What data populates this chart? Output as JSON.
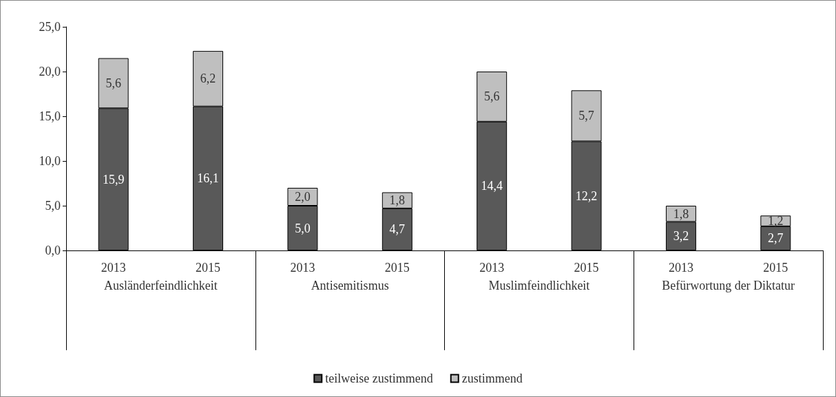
{
  "chart_data": {
    "type": "bar",
    "stacked": true,
    "categories": [
      "2013",
      "2015",
      "2013",
      "2015",
      "2013",
      "2015",
      "2013",
      "2015"
    ],
    "series": [
      {
        "name": "teilweise zustimmend",
        "color": "#595959",
        "values": [
          15.9,
          16.1,
          5.0,
          4.7,
          14.4,
          12.2,
          3.2,
          2.7
        ],
        "value_labels": [
          "15,9",
          "16,1",
          "5,0",
          "4,7",
          "14,4",
          "12,2",
          "3,2",
          "2,7"
        ]
      },
      {
        "name": "zustimmend",
        "color": "#bfbfbf",
        "values": [
          5.6,
          6.2,
          2.0,
          1.8,
          5.6,
          5.7,
          1.8,
          1.2
        ],
        "value_labels": [
          "5,6",
          "6,2",
          "2,0",
          "1,8",
          "5,6",
          "5,7",
          "1,8",
          "1,2"
        ]
      }
    ],
    "annotations": [
      "Ausländerfeindlichkeit",
      "Antisemitismus",
      "Muslimfeindlichkeit",
      "Befürwortung der Diktatur"
    ],
    "ylim": [
      0,
      25
    ],
    "yticks": [
      {
        "value": 0,
        "label": "0,0"
      },
      {
        "value": 5,
        "label": "5,0"
      },
      {
        "value": 10,
        "label": "10,0"
      },
      {
        "value": 15,
        "label": "15,0"
      },
      {
        "value": 20,
        "label": "20,0"
      },
      {
        "value": 25,
        "label": "25,0"
      }
    ],
    "grid": false,
    "legend": "bottom"
  }
}
